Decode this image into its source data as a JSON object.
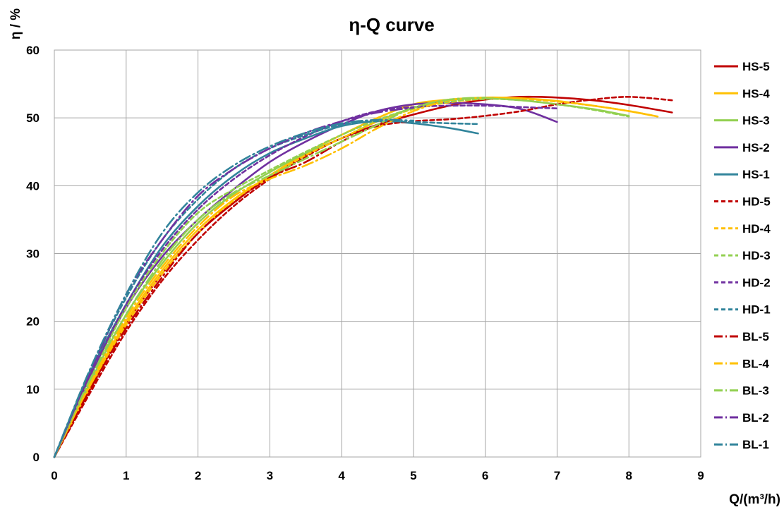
{
  "chart_data": {
    "type": "line",
    "title": "η-Q  curve",
    "xlabel": "Q/(m³/h)",
    "ylabel": "η / %",
    "xlim": [
      0,
      9
    ],
    "ylim": [
      0,
      60
    ],
    "xticks": [
      0,
      1,
      2,
      3,
      4,
      5,
      6,
      7,
      8,
      9
    ],
    "yticks": [
      0,
      10,
      20,
      30,
      40,
      50,
      60
    ],
    "grid": true,
    "legend_position": "right",
    "series": [
      {
        "name": "HS-5",
        "color": "#c00000",
        "dash": "solid",
        "points": [
          [
            0,
            0
          ],
          [
            0.5,
            10
          ],
          [
            1,
            19.5
          ],
          [
            1.5,
            27
          ],
          [
            2,
            33
          ],
          [
            2.5,
            37.5
          ],
          [
            3,
            41.5
          ],
          [
            3.5,
            44.5
          ],
          [
            4,
            47
          ],
          [
            4.5,
            49
          ],
          [
            5,
            50.5
          ],
          [
            5.5,
            51.8
          ],
          [
            6,
            52.7
          ],
          [
            6.5,
            53.1
          ],
          [
            7,
            53
          ],
          [
            7.5,
            52.6
          ],
          [
            8,
            51.9
          ],
          [
            8.6,
            50.8
          ]
        ]
      },
      {
        "name": "HS-4",
        "color": "#ffc000",
        "dash": "solid",
        "points": [
          [
            0,
            0
          ],
          [
            0.5,
            10.5
          ],
          [
            1,
            20
          ],
          [
            1.5,
            27.5
          ],
          [
            2,
            33.5
          ],
          [
            2.5,
            38
          ],
          [
            3,
            41.5
          ],
          [
            3.5,
            44.8
          ],
          [
            4,
            47.5
          ],
          [
            4.5,
            50
          ],
          [
            5,
            52
          ],
          [
            5.5,
            52.7
          ],
          [
            6,
            53
          ],
          [
            6.5,
            52.9
          ],
          [
            7,
            52.5
          ],
          [
            7.5,
            51.8
          ],
          [
            8,
            51
          ],
          [
            8.4,
            50.2
          ]
        ]
      },
      {
        "name": "HS-3",
        "color": "#92d050",
        "dash": "solid",
        "points": [
          [
            0,
            0
          ],
          [
            0.5,
            11
          ],
          [
            1,
            21
          ],
          [
            1.5,
            28.5
          ],
          [
            2,
            34.5
          ],
          [
            2.5,
            38.8
          ],
          [
            3,
            42
          ],
          [
            3.5,
            44.8
          ],
          [
            4,
            47
          ],
          [
            4.5,
            49.5
          ],
          [
            5,
            51.5
          ],
          [
            5.5,
            52.6
          ],
          [
            6,
            52.9
          ],
          [
            6.5,
            52.6
          ],
          [
            7,
            52
          ],
          [
            7.5,
            51.3
          ],
          [
            8,
            50.3
          ]
        ]
      },
      {
        "name": "HS-2",
        "color": "#7030a0",
        "dash": "solid",
        "points": [
          [
            0,
            0
          ],
          [
            0.5,
            12
          ],
          [
            1,
            22
          ],
          [
            1.5,
            29.5
          ],
          [
            2,
            35
          ],
          [
            2.5,
            39.5
          ],
          [
            3,
            43.5
          ],
          [
            3.5,
            46.5
          ],
          [
            4,
            49
          ],
          [
            4.5,
            51
          ],
          [
            5,
            52
          ],
          [
            5.5,
            52.2
          ],
          [
            6,
            52
          ],
          [
            6.5,
            51.3
          ],
          [
            7,
            49.4
          ]
        ]
      },
      {
        "name": "HS-1",
        "color": "#31849b",
        "dash": "solid",
        "points": [
          [
            0,
            0
          ],
          [
            0.5,
            12.5
          ],
          [
            1,
            22.5
          ],
          [
            1.5,
            31
          ],
          [
            2,
            37
          ],
          [
            2.5,
            41.5
          ],
          [
            3,
            44.8
          ],
          [
            3.5,
            47
          ],
          [
            4,
            48.8
          ],
          [
            4.5,
            49.5
          ],
          [
            5,
            49.2
          ],
          [
            5.5,
            48.5
          ],
          [
            5.9,
            47.7
          ]
        ]
      },
      {
        "name": "HD-5",
        "color": "#c00000",
        "dash": "short",
        "points": [
          [
            0,
            0
          ],
          [
            0.5,
            9.5
          ],
          [
            1,
            18.5
          ],
          [
            1.5,
            26
          ],
          [
            2,
            32
          ],
          [
            2.5,
            37
          ],
          [
            3,
            41
          ],
          [
            3.5,
            44.3
          ],
          [
            4,
            47
          ],
          [
            4.5,
            48.8
          ],
          [
            5,
            49.5
          ],
          [
            5.5,
            49.8
          ],
          [
            6,
            50.3
          ],
          [
            6.5,
            51
          ],
          [
            7,
            52
          ],
          [
            7.5,
            52.7
          ],
          [
            8,
            53.1
          ],
          [
            8.6,
            52.6
          ]
        ]
      },
      {
        "name": "HD-4",
        "color": "#ffc000",
        "dash": "short",
        "points": [
          [
            0,
            0
          ],
          [
            0.5,
            10.3
          ],
          [
            1,
            19.5
          ],
          [
            1.5,
            27
          ],
          [
            2,
            33
          ],
          [
            2.5,
            37.8
          ],
          [
            3,
            41.3
          ],
          [
            3.5,
            44.5
          ],
          [
            4,
            47
          ],
          [
            4.5,
            49.5
          ],
          [
            5,
            51.3
          ],
          [
            5.5,
            52.3
          ],
          [
            6,
            52.8
          ],
          [
            6.5,
            52.8
          ],
          [
            7,
            52.4
          ],
          [
            7.5,
            51.8
          ],
          [
            8,
            51
          ],
          [
            8.4,
            50.2
          ]
        ]
      },
      {
        "name": "HD-3",
        "color": "#92d050",
        "dash": "short",
        "points": [
          [
            0,
            0
          ],
          [
            0.5,
            11.5
          ],
          [
            1,
            22
          ],
          [
            1.5,
            30
          ],
          [
            2,
            36
          ],
          [
            2.5,
            39.5
          ],
          [
            3,
            42.3
          ],
          [
            3.5,
            45
          ],
          [
            4,
            47.5
          ],
          [
            4.5,
            49.7
          ],
          [
            5,
            51.4
          ],
          [
            5.5,
            52.4
          ],
          [
            6,
            52.8
          ],
          [
            6.5,
            52.6
          ],
          [
            7,
            52
          ],
          [
            7.5,
            51.2
          ],
          [
            8,
            50.2
          ]
        ]
      },
      {
        "name": "HD-2",
        "color": "#7030a0",
        "dash": "short",
        "points": [
          [
            0,
            0
          ],
          [
            0.5,
            12
          ],
          [
            1,
            22.5
          ],
          [
            1.5,
            30.5
          ],
          [
            2,
            36.5
          ],
          [
            2.5,
            41
          ],
          [
            3,
            44.5
          ],
          [
            3.5,
            47.3
          ],
          [
            4,
            49.5
          ],
          [
            4.5,
            51
          ],
          [
            5,
            51.6
          ],
          [
            5.5,
            51.8
          ],
          [
            6,
            51.8
          ],
          [
            6.5,
            51.6
          ],
          [
            7,
            51.4
          ]
        ]
      },
      {
        "name": "HD-1",
        "color": "#31849b",
        "dash": "short",
        "points": [
          [
            0,
            0
          ],
          [
            0.5,
            12.8
          ],
          [
            1,
            23.5
          ],
          [
            1.5,
            32
          ],
          [
            2,
            38
          ],
          [
            2.5,
            42.5
          ],
          [
            3,
            45.5
          ],
          [
            3.5,
            47.5
          ],
          [
            4,
            49
          ],
          [
            4.5,
            49.5
          ],
          [
            5,
            49.4
          ],
          [
            5.5,
            49.2
          ],
          [
            5.9,
            49.1
          ]
        ]
      },
      {
        "name": "BL-5",
        "color": "#c00000",
        "dash": "dashdot",
        "points": [
          [
            0,
            0
          ],
          [
            0.5,
            10
          ],
          [
            1,
            19
          ],
          [
            1.5,
            26.5
          ],
          [
            2,
            33
          ],
          [
            2.5,
            37.5
          ],
          [
            3,
            41.2
          ],
          [
            3.5,
            43.5
          ],
          [
            4,
            46.5
          ],
          [
            4.5,
            49
          ],
          [
            5,
            50.5
          ]
        ]
      },
      {
        "name": "BL-4",
        "color": "#ffc000",
        "dash": "dashdot",
        "points": [
          [
            0,
            0
          ],
          [
            0.5,
            10.8
          ],
          [
            1,
            20.5
          ],
          [
            1.5,
            28
          ],
          [
            2,
            34
          ],
          [
            2.5,
            38.5
          ],
          [
            3,
            41
          ],
          [
            3.5,
            43
          ],
          [
            4,
            45.5
          ],
          [
            4.5,
            48.5
          ],
          [
            5,
            51
          ],
          [
            5.5,
            52.6
          ],
          [
            6,
            53
          ]
        ]
      },
      {
        "name": "BL-3",
        "color": "#92d050",
        "dash": "dashdot",
        "points": [
          [
            0,
            0
          ],
          [
            0.5,
            11.5
          ],
          [
            1,
            21
          ],
          [
            1.5,
            29
          ],
          [
            2,
            35
          ],
          [
            2.5,
            39
          ],
          [
            3,
            41.5
          ],
          [
            3.5,
            44
          ],
          [
            4,
            46.5
          ],
          [
            4.5,
            49
          ],
          [
            5,
            51.5
          ],
          [
            5.5,
            52.7
          ],
          [
            6,
            53
          ]
        ]
      },
      {
        "name": "BL-2",
        "color": "#7030a0",
        "dash": "dashdot",
        "points": [
          [
            0,
            0
          ],
          [
            0.5,
            12.5
          ],
          [
            1,
            24
          ],
          [
            1.5,
            32
          ],
          [
            2,
            38.5
          ],
          [
            2.5,
            42.5
          ],
          [
            3,
            45.5
          ],
          [
            3.5,
            47.8
          ],
          [
            4,
            49.5
          ],
          [
            4.5,
            50.8
          ],
          [
            5,
            51.5
          ]
        ]
      },
      {
        "name": "BL-1",
        "color": "#31849b",
        "dash": "dashdot",
        "points": [
          [
            0,
            0
          ],
          [
            0.5,
            13
          ],
          [
            1,
            24
          ],
          [
            1.5,
            33
          ],
          [
            2,
            39
          ],
          [
            2.5,
            43
          ],
          [
            3,
            45.8
          ],
          [
            3.5,
            47.8
          ],
          [
            4,
            49.2
          ],
          [
            4.5,
            49.7
          ],
          [
            5,
            49.6
          ]
        ]
      }
    ]
  }
}
